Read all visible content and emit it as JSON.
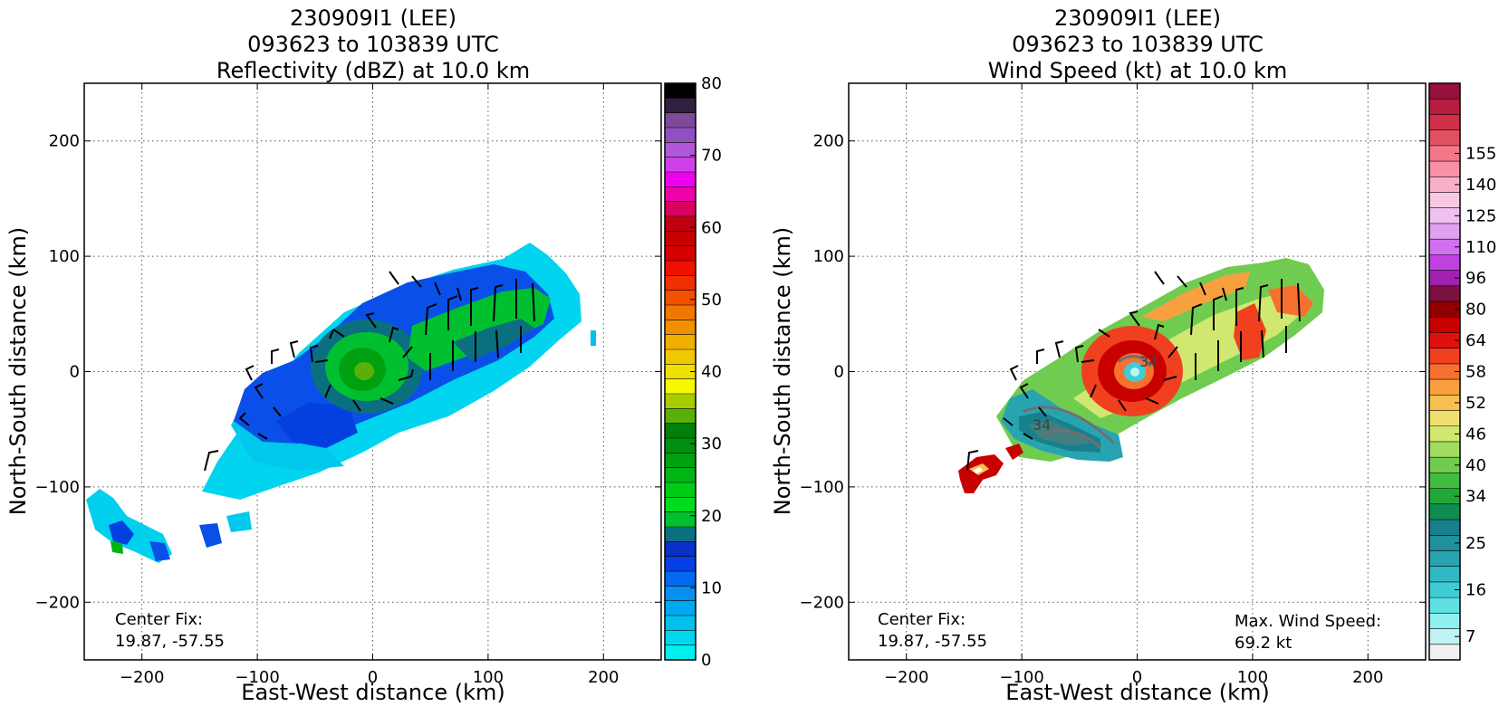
{
  "chart_data": [
    {
      "type": "heatmap",
      "title_lines": [
        "230909I1 (LEE)",
        "093623 to 103839 UTC",
        "Reflectivity (dBZ) at 10.0 km"
      ],
      "xlabel": "East-West distance (km)",
      "ylabel": "North-South distance (km)",
      "xlim": [
        -250,
        250
      ],
      "ylim": [
        -250,
        250
      ],
      "x_ticks": [
        -200,
        -100,
        0,
        100,
        200
      ],
      "y_ticks": [
        -200,
        -100,
        0,
        100,
        200
      ],
      "x_tick_labels": [
        "−200",
        "−100",
        "0",
        "100",
        "200"
      ],
      "y_tick_labels": [
        "−200",
        "−100",
        "0",
        "100",
        "200"
      ],
      "grid": "dotted",
      "annotation_lines": [
        "Center Fix:",
        "19.87, -57.55"
      ],
      "colorbar": {
        "levels": [
          0,
          2.5,
          5,
          7.5,
          10,
          12.5,
          15,
          17.5,
          20,
          22.5,
          25,
          27.5,
          30,
          32.5,
          35,
          37.5,
          40,
          42.5,
          45,
          47.5,
          50,
          52.5,
          55,
          57.5,
          60,
          62.5,
          65,
          67.5,
          70,
          72.5,
          75,
          77.5,
          80
        ],
        "colors": [
          "#00f0f0",
          "#00d8ee",
          "#00c0ee",
          "#00a8f0",
          "#0890f0",
          "#0468f0",
          "#0440e8",
          "#0a30c8",
          "#0a7080",
          "#00c030",
          "#00dc20",
          "#00cc18",
          "#00b414",
          "#00a010",
          "#009010",
          "#008008",
          "#58b008",
          "#a8cc00",
          "#f8f800",
          "#f0e000",
          "#f0c800",
          "#f0b000",
          "#f09000",
          "#f07800",
          "#f05000",
          "#f03000",
          "#f01000",
          "#d80000",
          "#c80000",
          "#c00010",
          "#d80060",
          "#f000a8",
          "#f000f0",
          "#d040e8",
          "#b058d8",
          "#9050c0",
          "#804898",
          "#302040",
          "#000000"
        ],
        "tick_values": [
          0,
          10,
          20,
          30,
          40,
          50,
          60,
          70,
          80
        ],
        "tick_labels": [
          "0",
          "10",
          "20",
          "30",
          "40",
          "50",
          "60",
          "70",
          "80"
        ]
      }
    },
    {
      "type": "heatmap",
      "title_lines": [
        "230909I1 (LEE)",
        "093623 to 103839 UTC",
        "Wind Speed (kt) at 10.0 km"
      ],
      "xlabel": "East-West distance (km)",
      "ylabel": "North-South distance (km)",
      "xlim": [
        -250,
        250
      ],
      "ylim": [
        -250,
        250
      ],
      "x_ticks": [
        -200,
        -100,
        0,
        100,
        200
      ],
      "y_ticks": [
        -200,
        -100,
        0,
        100,
        200
      ],
      "x_tick_labels": [
        "−200",
        "−100",
        "0",
        "100",
        "200"
      ],
      "y_tick_labels": [
        "−200",
        "−100",
        "0",
        "100",
        "200"
      ],
      "grid": "dotted",
      "annotation_lines": [
        "Center Fix:",
        "19.87, -57.55"
      ],
      "annotation_right_lines": [
        "Max. Wind Speed:",
        "69.2 kt"
      ],
      "contour_labels": [
        "34",
        "34"
      ],
      "colorbar": {
        "levels": [
          4,
          7,
          10,
          13,
          16,
          19,
          22,
          25,
          28,
          31,
          34,
          37,
          40,
          43,
          46,
          49,
          52,
          55,
          58,
          61,
          64,
          72,
          80,
          88,
          96,
          103,
          110,
          118,
          125,
          132,
          140,
          148,
          155,
          162
        ],
        "colors": [
          "#f0f0f0",
          "#c0f4f4",
          "#90f0f0",
          "#60e0e4",
          "#40ccd4",
          "#30b8c4",
          "#28a4b0",
          "#20909c",
          "#18808c",
          "#108c50",
          "#20a838",
          "#40bc40",
          "#70cc50",
          "#a0dc60",
          "#d0e870",
          "#f0e070",
          "#f8c050",
          "#f8a040",
          "#f87030",
          "#f04020",
          "#e01010",
          "#c80000",
          "#900000",
          "#7a1040",
          "#a020b0",
          "#c040e0",
          "#d070f0",
          "#e0a0f0",
          "#f0c0f0",
          "#f8c8e0",
          "#f8b0c8",
          "#f890a8",
          "#f07888",
          "#e05060",
          "#d03048",
          "#b81c40",
          "#98103c"
        ],
        "tick_values": [
          7,
          16,
          25,
          34,
          40,
          46,
          52,
          58,
          64,
          80,
          96,
          110,
          125,
          140,
          155
        ],
        "tick_labels": [
          "7",
          "16",
          "25",
          "34",
          "40",
          "46",
          "52",
          "58",
          "64",
          "80",
          "96",
          "110",
          "125",
          "140",
          "155"
        ]
      }
    }
  ]
}
